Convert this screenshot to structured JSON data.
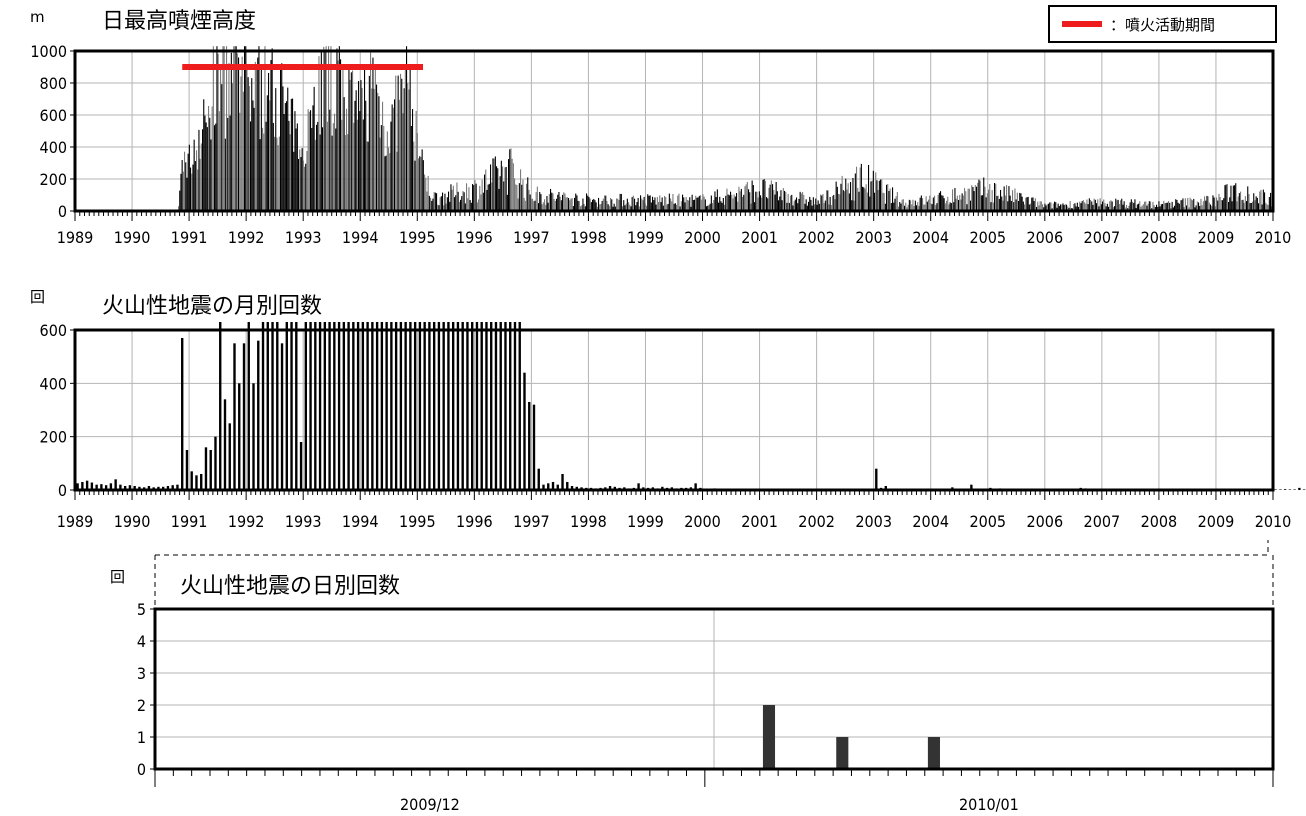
{
  "legend": {
    "label": "：噴火活動期間",
    "color": "#ee1c1c"
  },
  "chart_data": [
    {
      "id": "plume",
      "type": "bar",
      "title": "日最高噴煙高度",
      "unit_label": "m",
      "ylim": [
        0,
        1000
      ],
      "y_ticks": [
        0,
        200,
        400,
        600,
        800,
        1000
      ],
      "x_range": [
        1989,
        2010
      ],
      "x_tick_labels": [
        "1989",
        "1990",
        "1991",
        "1992",
        "1993",
        "1994",
        "1995",
        "1996",
        "1997",
        "1998",
        "1999",
        "2000",
        "2001",
        "2002",
        "2003",
        "2004",
        "2005",
        "2006",
        "2007",
        "2008",
        "2009",
        "2010"
      ],
      "grid": true,
      "eruption_period": {
        "start": 1990.88,
        "end": 1995.1,
        "level": 900
      },
      "envelope": [
        [
          1989.0,
          0
        ],
        [
          1990.8,
          0
        ],
        [
          1990.88,
          400
        ],
        [
          1991.0,
          380
        ],
        [
          1991.3,
          700
        ],
        [
          1991.45,
          1000
        ],
        [
          1992.0,
          1000
        ],
        [
          1992.6,
          900
        ],
        [
          1992.9,
          500
        ],
        [
          1993.1,
          700
        ],
        [
          1993.3,
          1000
        ],
        [
          1993.7,
          1000
        ],
        [
          1993.9,
          700
        ],
        [
          1994.2,
          1000
        ],
        [
          1994.5,
          600
        ],
        [
          1994.8,
          1000
        ],
        [
          1995.1,
          300
        ],
        [
          1995.3,
          120
        ],
        [
          1996.0,
          200
        ],
        [
          1996.6,
          400
        ],
        [
          1997.0,
          150
        ],
        [
          1998.0,
          100
        ],
        [
          1999.0,
          100
        ],
        [
          2000.0,
          100
        ],
        [
          2001.0,
          200
        ],
        [
          2002.0,
          80
        ],
        [
          2002.8,
          300
        ],
        [
          2003.5,
          80
        ],
        [
          2004.0,
          100
        ],
        [
          2005.0,
          200
        ],
        [
          2006.0,
          50
        ],
        [
          2007.0,
          80
        ],
        [
          2008.0,
          60
        ],
        [
          2009.0,
          100
        ],
        [
          2009.3,
          200
        ],
        [
          2010.0,
          100
        ]
      ]
    },
    {
      "id": "monthly",
      "type": "bar",
      "title": "火山性地震の月別回数",
      "unit_label": "回",
      "ylim": [
        0,
        600
      ],
      "y_ticks": [
        0,
        200,
        400,
        600
      ],
      "x_range": [
        1989,
        2010
      ],
      "x_tick_labels": [
        "1989",
        "1990",
        "1991",
        "1992",
        "1993",
        "1994",
        "1995",
        "1996",
        "1997",
        "1998",
        "1999",
        "2000",
        "2001",
        "2002",
        "2003",
        "2004",
        "2005",
        "2006",
        "2007",
        "2008",
        "2009",
        "2010"
      ],
      "grid": true,
      "values": [
        25,
        30,
        35,
        28,
        20,
        22,
        18,
        25,
        40,
        20,
        15,
        18,
        15,
        12,
        10,
        15,
        10,
        12,
        12,
        15,
        18,
        20,
        570,
        150,
        70,
        55,
        60,
        160,
        150,
        200,
        600,
        340,
        250,
        550,
        400,
        550,
        600,
        400,
        560,
        600,
        600,
        600,
        600,
        550,
        600,
        600,
        600,
        180,
        600,
        600,
        600,
        600,
        600,
        600,
        600,
        600,
        600,
        600,
        600,
        600,
        600,
        600,
        600,
        600,
        600,
        600,
        600,
        600,
        600,
        600,
        600,
        600,
        600,
        600,
        600,
        600,
        600,
        600,
        600,
        600,
        600,
        600,
        600,
        600,
        600,
        600,
        600,
        600,
        600,
        600,
        600,
        600,
        600,
        600,
        440,
        330,
        320,
        80,
        20,
        25,
        30,
        20,
        60,
        30,
        15,
        12,
        10,
        8,
        8,
        6,
        8,
        10,
        15,
        12,
        8,
        10,
        6,
        8,
        25,
        10,
        8,
        10,
        6,
        12,
        8,
        10,
        6,
        8,
        8,
        10,
        25,
        8,
        5,
        4,
        6,
        5,
        4,
        3,
        5,
        4,
        3,
        5,
        4,
        3,
        3,
        4,
        2,
        3,
        2,
        3,
        4,
        2,
        3,
        2,
        3,
        2,
        2,
        3,
        2,
        3,
        2,
        3,
        2,
        3,
        2,
        3,
        2,
        3,
        80,
        8,
        15,
        5,
        4,
        3,
        2,
        3,
        2,
        3,
        4,
        3,
        3,
        4,
        3,
        2,
        10,
        3,
        2,
        3,
        20,
        3,
        2,
        2,
        8,
        5,
        6,
        4,
        3,
        3,
        2,
        3,
        2,
        3,
        2,
        4,
        3,
        2,
        2,
        3,
        2,
        3,
        4,
        8,
        6,
        3,
        2,
        2,
        2,
        3,
        2,
        2,
        3,
        2,
        2,
        3,
        2,
        3,
        2,
        3,
        3,
        2,
        2,
        3,
        2,
        2,
        3,
        2,
        2,
        3,
        2,
        2,
        2,
        3,
        2,
        2,
        3,
        2,
        2,
        3,
        2,
        2,
        3,
        2,
        2,
        2,
        3,
        2,
        2,
        8,
        2,
        2,
        3,
        2,
        2,
        2,
        2,
        2,
        2,
        2,
        2,
        2,
        2,
        2,
        2,
        2,
        2,
        2,
        2,
        2,
        2,
        2,
        2,
        2,
        2,
        2,
        2,
        2,
        2,
        2,
        2,
        2,
        2,
        2,
        2,
        2,
        2,
        2,
        2,
        2,
        2,
        2
      ]
    },
    {
      "id": "daily",
      "type": "bar",
      "title": "火山性地震の日別回数",
      "unit_label": "回",
      "ylim": [
        0,
        5
      ],
      "y_ticks": [
        0,
        1,
        2,
        3,
        4,
        5
      ],
      "x_tick_labels": [
        "2009/12",
        "2010/01"
      ],
      "grid": true,
      "days": 61,
      "values": [
        0,
        0,
        0,
        0,
        0,
        0,
        0,
        0,
        0,
        0,
        0,
        0,
        0,
        0,
        0,
        0,
        0,
        0,
        0,
        0,
        0,
        0,
        0,
        0,
        0,
        0,
        0,
        0,
        0,
        0,
        0,
        0,
        0,
        2,
        0,
        0,
        0,
        1,
        0,
        0,
        0,
        0,
        1,
        0,
        0,
        0,
        0,
        0,
        0,
        0,
        0,
        0,
        0,
        0,
        0,
        0,
        0,
        0,
        0,
        0,
        0
      ]
    }
  ]
}
